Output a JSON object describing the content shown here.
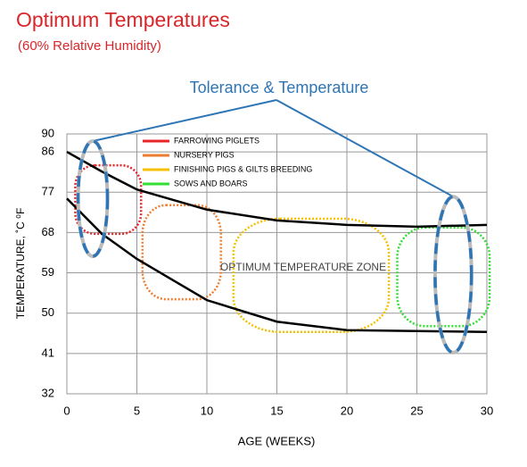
{
  "chart_data": {
    "type": "line",
    "title": "Optimum Temperatures",
    "subtitle": "(60% Relative Humidity)",
    "callout": "Tolerance  & Temperature",
    "annotation": "OPTIMUM   TEMPERATURE ZONE",
    "x_label": "AGE (WEEKS)",
    "y_label": "TEMPERATURE, ˚C   ⁰F",
    "xlim": [
      0,
      30
    ],
    "xticks": [
      0,
      5,
      10,
      15,
      20,
      25,
      30
    ],
    "ylim": [
      32,
      90
    ],
    "yticks": [
      32,
      41,
      50,
      59,
      68,
      77,
      86,
      90
    ],
    "grid": true,
    "curves": [
      {
        "color": "#000000",
        "x": [
          0,
          2.5,
          5,
          10,
          15,
          20,
          25,
          30
        ],
        "values": [
          86.0,
          81.6,
          77.6,
          73.1,
          70.7,
          69.7,
          69.3,
          69.7
        ]
      },
      {
        "color": "#000000",
        "x": [
          0,
          2.5,
          5,
          7.5,
          10,
          15,
          20,
          25,
          30
        ],
        "values": [
          75.6,
          67.7,
          62.1,
          57.5,
          52.9,
          48.1,
          46.2,
          46.0,
          45.8
        ]
      }
    ],
    "zones": [
      {
        "name": "FARROWING PIGLETS",
        "color": "#e8262a",
        "x": [
          0.6,
          5.3
        ],
        "y": [
          67.7,
          83.0
        ]
      },
      {
        "name": "NURSERY PIGS",
        "color": "#ed7d31",
        "x": [
          5.4,
          11.0
        ],
        "y": [
          53.1,
          74.1
        ]
      },
      {
        "name": "FINISHING PIGS & GILTS BREEDING",
        "color": "#f5c000",
        "x": [
          11.9,
          23.0
        ],
        "y": [
          45.8,
          71.1
        ]
      },
      {
        "name": "SOWS AND BOARS",
        "color": "#33dd33",
        "x": [
          23.6,
          30.2
        ],
        "y": [
          47.1,
          69.1
        ]
      }
    ],
    "tolerance": {
      "color": "#2e75b6",
      "ranges": [
        {
          "x": [
            0.8,
            2.9
          ],
          "y": [
            62.7,
            88.4
          ]
        },
        {
          "x": [
            26.3,
            28.9
          ],
          "y": [
            41.2,
            76.0
          ]
        }
      ]
    }
  }
}
